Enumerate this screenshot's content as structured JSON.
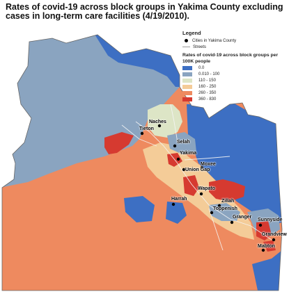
{
  "title": "Rates of covid-19 across block groups in Yakima County excluding cases in long-term care facilities (4/19/2010).",
  "legend": {
    "heading": "Legend",
    "cities_label": "Cities in Yakima County",
    "streets_label": "Streets",
    "rates_title": "Rates of covid-19 across block groups per 100K people",
    "classes": [
      {
        "label": "0.0",
        "color": "#3d6fc3"
      },
      {
        "label": "0.010 - 100",
        "color": "#8aa4c0"
      },
      {
        "label": "110 - 150",
        "color": "#dde5c6"
      },
      {
        "label": "160 - 250",
        "color": "#f4cc98"
      },
      {
        "label": "260 - 350",
        "color": "#ee8a5f"
      },
      {
        "label": "360 - 830",
        "color": "#d63a30"
      }
    ]
  },
  "cities": [
    {
      "id": "naches",
      "name": "Naches"
    },
    {
      "id": "tieton",
      "name": "Tieton"
    },
    {
      "id": "selah",
      "name": "Selah"
    },
    {
      "id": "yakima",
      "name": "Yakima"
    },
    {
      "id": "moxee",
      "name": "Moxee"
    },
    {
      "id": "union-gap",
      "name": "Union Gap"
    },
    {
      "id": "wapato",
      "name": "Wapato"
    },
    {
      "id": "harrah",
      "name": "Harrah"
    },
    {
      "id": "zillah",
      "name": "Zillah"
    },
    {
      "id": "toppenish",
      "name": "Toppenish"
    },
    {
      "id": "granger",
      "name": "Granger"
    },
    {
      "id": "sunnyside",
      "name": "Sunnyside"
    },
    {
      "id": "grandview",
      "name": "Grandview"
    },
    {
      "id": "mabton",
      "name": "Mabton"
    }
  ]
}
